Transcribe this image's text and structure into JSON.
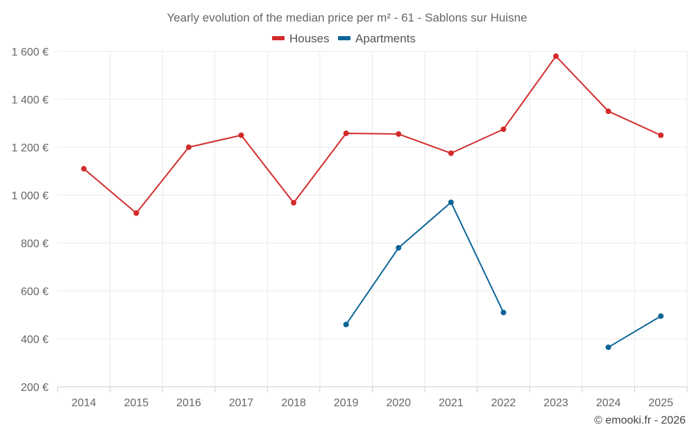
{
  "chart_data": {
    "type": "line",
    "title": "Yearly evolution of the median price per m² - 61 - Sablons sur Huisne",
    "x": [
      "2014",
      "2015",
      "2016",
      "2017",
      "2018",
      "2019",
      "2020",
      "2021",
      "2022",
      "2023",
      "2024",
      "2025"
    ],
    "y_ticks": [
      "200 €",
      "400 €",
      "600 €",
      "800 €",
      "1 000 €",
      "1 200 €",
      "1 400 €",
      "1 600 €"
    ],
    "y_tick_values": [
      200,
      400,
      600,
      800,
      1000,
      1200,
      1400,
      1600
    ],
    "ylim": [
      200,
      1600
    ],
    "xlabel": "",
    "ylabel": "",
    "grid": true,
    "legend_position": "top-center",
    "series": [
      {
        "name": "Houses",
        "color": "#d22b2b",
        "values": [
          1110,
          925,
          1200,
          1250,
          968,
          1258,
          1255,
          1175,
          1275,
          1580,
          1350,
          1250
        ]
      },
      {
        "name": "Apartments",
        "color": "#0b6597",
        "values": [
          null,
          null,
          null,
          null,
          null,
          460,
          780,
          970,
          510,
          null,
          365,
          495
        ]
      }
    ]
  },
  "credit": "© emooki.fr - 2026"
}
